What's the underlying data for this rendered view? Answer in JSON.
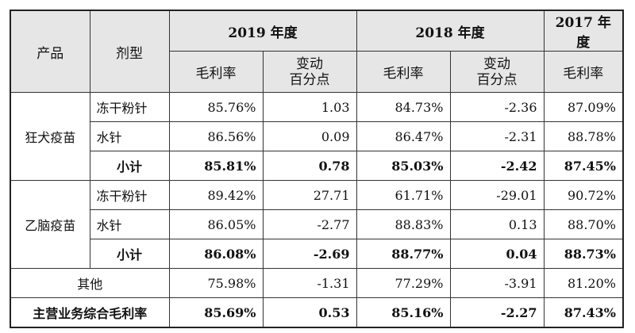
{
  "header": {
    "product": "产品",
    "form": "剂型",
    "years": [
      "2019 年度",
      "2018 年度",
      "2017 年度"
    ],
    "margin": "毛利率",
    "change_line1": "变动",
    "change_line2": "百分点"
  },
  "groups": [
    {
      "name": "狂犬疫苗",
      "rows": [
        {
          "form": "冻干粉针",
          "v2019": "85.76%",
          "c2019": "1.03",
          "v2018": "84.73%",
          "c2018": "-2.36",
          "v2017": "87.09%"
        },
        {
          "form": "水针",
          "v2019": "86.56%",
          "c2019": "0.09",
          "v2018": "86.47%",
          "c2018": "-2.31",
          "v2017": "88.78%"
        }
      ],
      "subtotal": {
        "label": "小计",
        "v2019": "85.81%",
        "c2019": "0.78",
        "v2018": "85.03%",
        "c2018": "-2.42",
        "v2017": "87.45%"
      }
    },
    {
      "name": "乙脑疫苗",
      "rows": [
        {
          "form": "冻干粉针",
          "v2019": "89.42%",
          "c2019": "27.71",
          "v2018": "61.71%",
          "c2018": "-29.01",
          "v2017": "90.72%"
        },
        {
          "form": "水针",
          "v2019": "86.05%",
          "c2019": "-2.77",
          "v2018": "88.83%",
          "c2018": "0.13",
          "v2017": "88.70%"
        }
      ],
      "subtotal": {
        "label": "小计",
        "v2019": "86.08%",
        "c2019": "-2.69",
        "v2018": "88.77%",
        "c2018": "0.04",
        "v2017": "88.73%"
      }
    }
  ],
  "other": {
    "label": "其他",
    "v2019": "75.98%",
    "c2019": "-1.31",
    "v2018": "77.29%",
    "c2018": "-3.91",
    "v2017": "81.20%"
  },
  "total": {
    "label": "主营业务综合毛利率",
    "v2019": "85.69%",
    "c2019": "0.53",
    "v2018": "85.16%",
    "c2018": "-2.27",
    "v2017": "87.43%"
  }
}
